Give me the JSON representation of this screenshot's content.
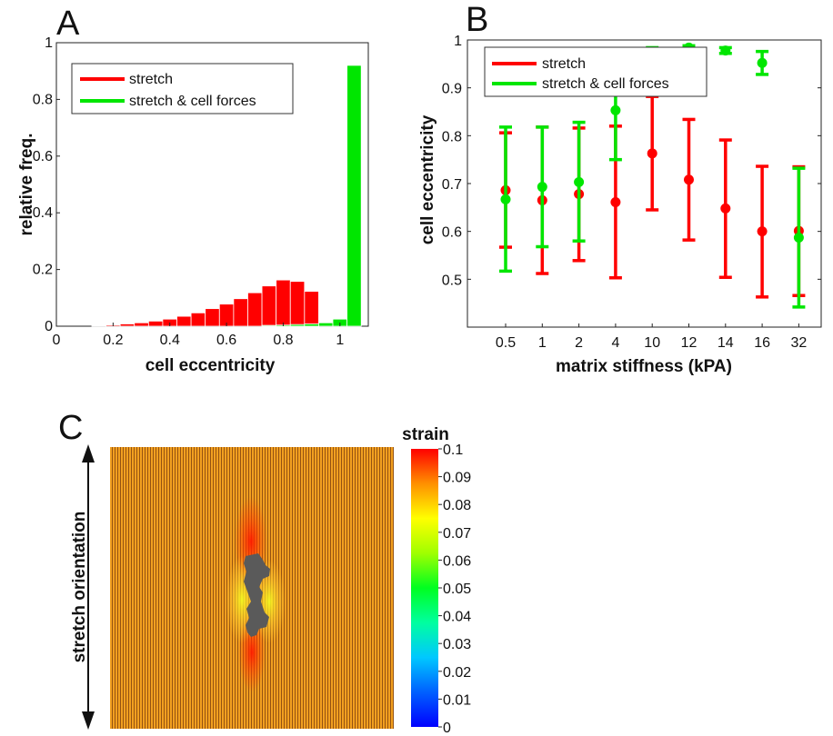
{
  "colors": {
    "stretch": "#ff0000",
    "stretch_cell_forces": "#00e600",
    "cell": "#555555",
    "field": "#f5a623"
  },
  "chart_data": [
    {
      "panel": "A",
      "type": "bar",
      "xlabel": "cell eccentricity",
      "ylabel": "relative freq.",
      "xlim": [
        0,
        1.1
      ],
      "ylim": [
        0,
        1
      ],
      "xticks": [
        "0",
        "0.2",
        "0.4",
        "0.6",
        "0.8",
        "1"
      ],
      "yticks": [
        "0",
        "0.2",
        "0.4",
        "0.6",
        "0.8",
        "1"
      ],
      "legend_position": "top-left",
      "bin_width": 0.05,
      "series": [
        {
          "name": "stretch",
          "color": "#ff0000",
          "x": [
            0.15,
            0.2,
            0.25,
            0.3,
            0.35,
            0.4,
            0.45,
            0.5,
            0.55,
            0.6,
            0.65,
            0.7,
            0.75,
            0.8,
            0.85,
            0.9,
            0.95
          ],
          "values": [
            0.002,
            0.004,
            0.008,
            0.012,
            0.018,
            0.025,
            0.035,
            0.047,
            0.062,
            0.078,
            0.097,
            0.118,
            0.142,
            0.163,
            0.158,
            0.123,
            0.0
          ]
        },
        {
          "name": "stretch & cell forces",
          "color": "#00e600",
          "x": [
            0.75,
            0.8,
            0.85,
            0.9,
            0.95,
            1.0,
            1.05
          ],
          "values": [
            0.003,
            0.004,
            0.006,
            0.008,
            0.012,
            0.025,
            0.92
          ]
        }
      ]
    },
    {
      "panel": "B",
      "type": "scatter",
      "xlabel": "matrix stiffness (kPA)",
      "ylabel": "cell eccentricity",
      "categories": [
        "0.5",
        "1",
        "2",
        "4",
        "10",
        "12",
        "14",
        "16",
        "32"
      ],
      "ylim": [
        0.4,
        1
      ],
      "yticks": [
        "0.5",
        "0.6",
        "0.7",
        "0.8",
        "0.9",
        "1"
      ],
      "legend_position": "top-left",
      "series": [
        {
          "name": "stretch",
          "color": "#ff0000",
          "values": [
            0.686,
            0.665,
            0.678,
            0.661,
            0.763,
            0.708,
            0.648,
            0.6,
            0.601
          ],
          "lower": [
            0.567,
            0.512,
            0.539,
            0.503,
            0.645,
            0.582,
            0.504,
            0.463,
            0.466
          ],
          "upper": [
            0.806,
            0.818,
            0.816,
            0.82,
            0.882,
            0.834,
            0.791,
            0.736,
            0.735
          ]
        },
        {
          "name": "stretch & cell forces",
          "color": "#00e600",
          "values": [
            0.667,
            0.693,
            0.703,
            0.853,
            0.975,
            0.984,
            0.978,
            0.952,
            0.587
          ],
          "lower": [
            0.517,
            0.568,
            0.58,
            0.75,
            0.966,
            0.98,
            0.972,
            0.928,
            0.442
          ],
          "upper": [
            0.818,
            0.818,
            0.828,
            0.957,
            0.984,
            0.988,
            0.984,
            0.976,
            0.732
          ]
        }
      ]
    },
    {
      "panel": "C",
      "type": "heatmap",
      "side_label": "stretch orientation",
      "colorbar_label": "strain",
      "clim": [
        0,
        0.1
      ],
      "colorbar_ticks": [
        "0.1",
        "0.09",
        "0.08",
        "0.07",
        "0.06",
        "0.05",
        "0.04",
        "0.03",
        "0.02",
        "0.01",
        "0"
      ]
    }
  ]
}
